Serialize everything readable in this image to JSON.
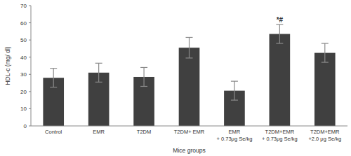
{
  "chart_data": {
    "type": "bar",
    "categories": [
      "Control",
      "EMR",
      "T2DM",
      "T2DM+ EMR",
      "EMR\n+ 0.73μg Se/kg",
      "T2DM+EMR\n+ 0.73μg Se/kg",
      "T2DM+EMR\n+2.0 μg Se/kg"
    ],
    "values": [
      28,
      31,
      28.5,
      45.5,
      20.5,
      53.5,
      42.5
    ],
    "errors": [
      5.5,
      5.5,
      5.5,
      6,
      5.5,
      5.5,
      5.5
    ],
    "color": "#404040",
    "x_label": "Mice groups",
    "y_label": "HDL-c (mg/ dl)",
    "ylim": [
      0,
      70
    ],
    "yticks": [
      0,
      10,
      20,
      30,
      40,
      50,
      60,
      70
    ],
    "grid": false,
    "annotations": [
      {
        "text": "*#",
        "index": 5
      }
    ]
  }
}
